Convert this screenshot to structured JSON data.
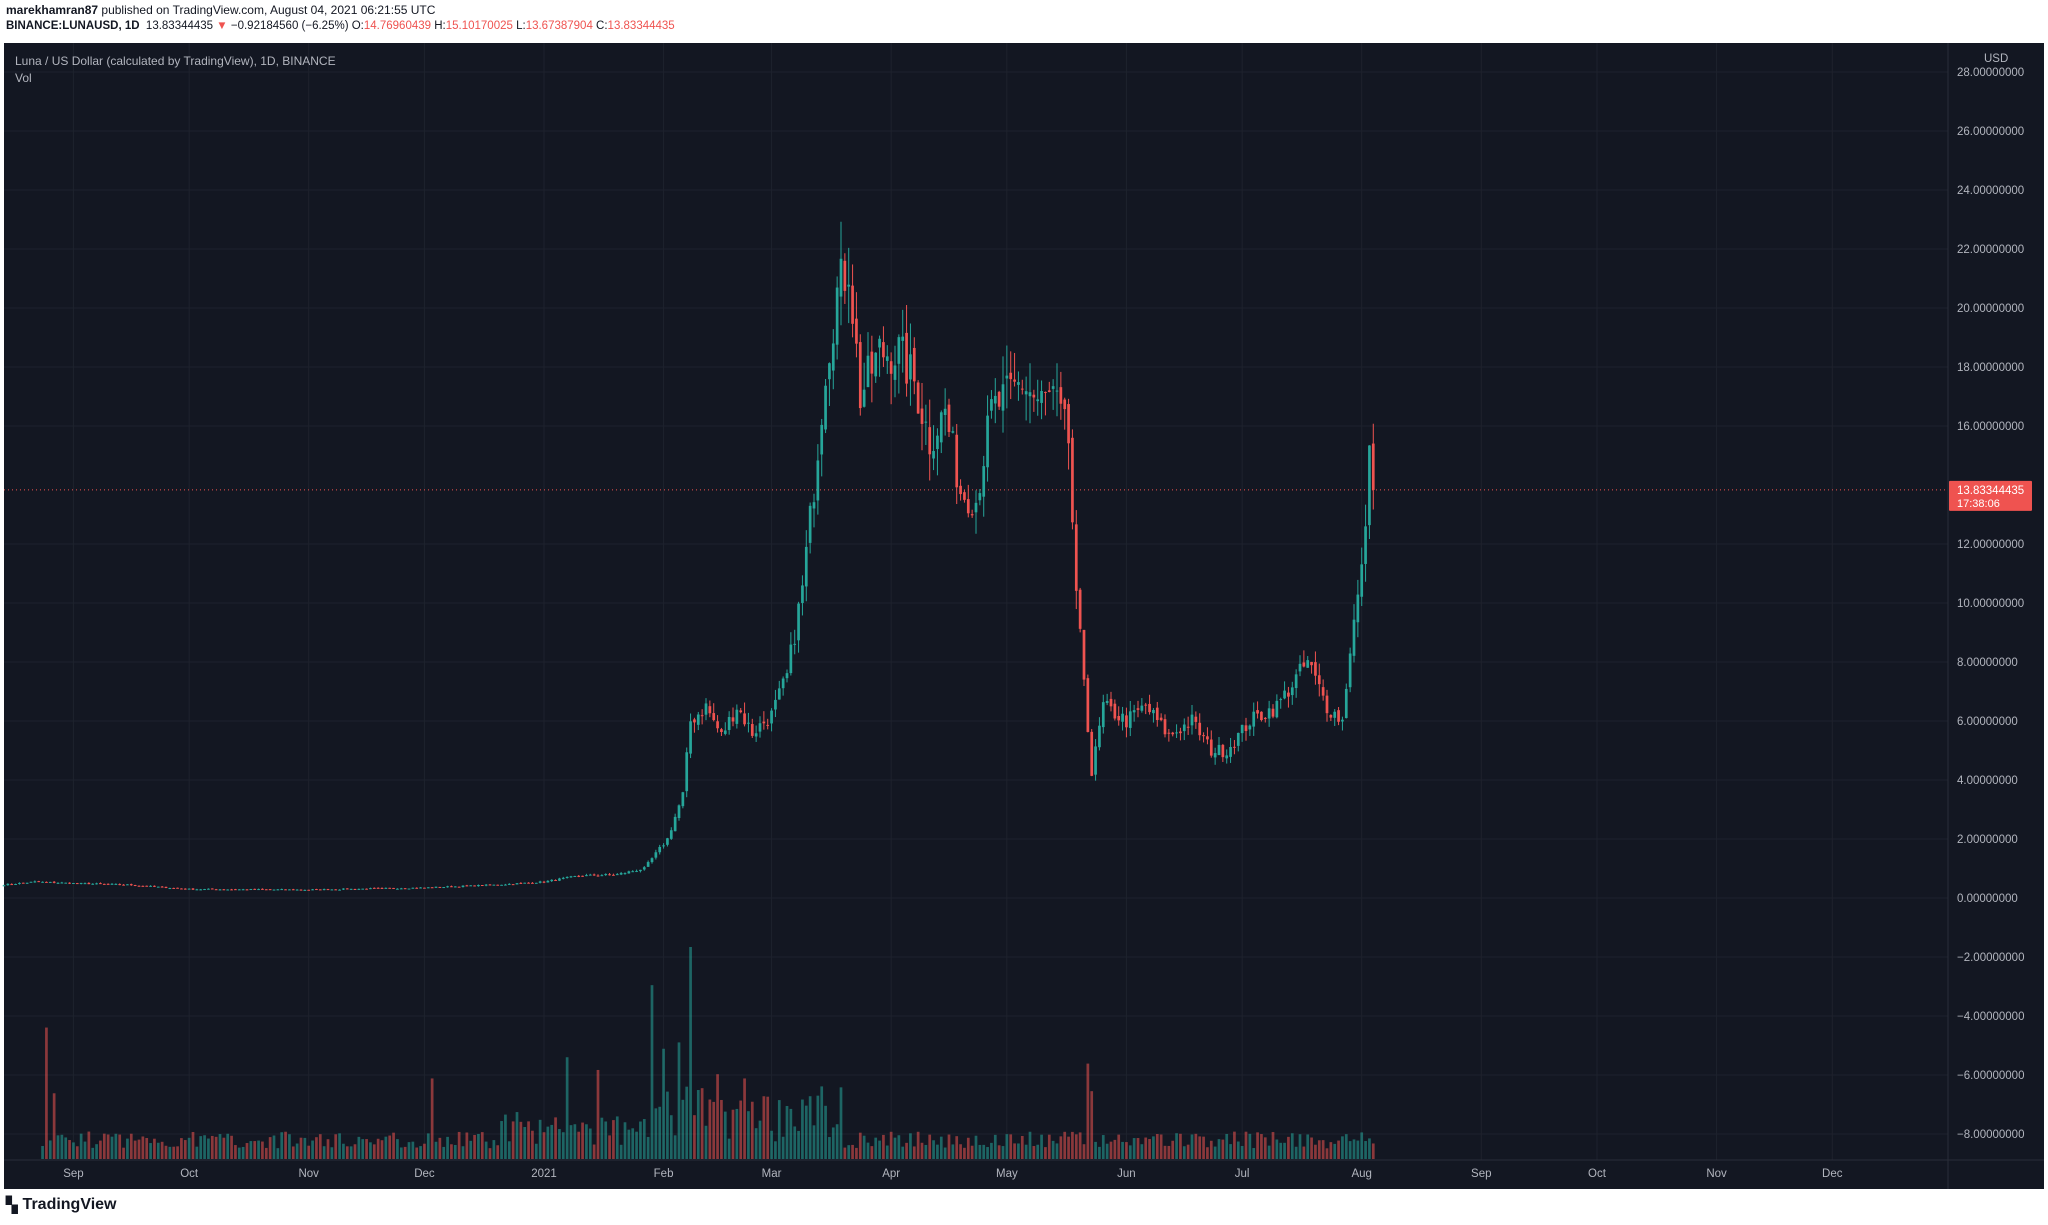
{
  "header": {
    "publisher": "marekhamran87",
    "published_text": "published on TradingView.com, August 04, 2021 06:21:55 UTC",
    "symbol": "BINANCE:LUNAUSD, 1D",
    "last": "13.83344435",
    "change_arrow": "▼",
    "change": "−0.92184560 (−6.25%)",
    "o_label": "O:",
    "o_value": "14.76960439",
    "h_label": "H:",
    "h_value": "15.10170025",
    "l_label": "L:",
    "l_value": "13.67387904",
    "c_label": "C:",
    "c_value": "13.83344435"
  },
  "legend": {
    "title": "Luna / US Dollar (calculated by TradingView), 1D, BINANCE",
    "volume_label": "Vol"
  },
  "price_scale": {
    "currency": "USD",
    "labels": [
      "28.00000000",
      "26.00000000",
      "24.00000000",
      "22.00000000",
      "20.00000000",
      "18.00000000",
      "16.00000000",
      "12.00000000",
      "10.00000000",
      "8.00000000",
      "6.00000000",
      "4.00000000",
      "2.00000000",
      "0.00000000",
      "−2.00000000",
      "−4.00000000",
      "−6.00000000",
      "−8.00000000"
    ],
    "current_price_label": "13.83344435",
    "countdown": "17:38:06"
  },
  "time_scale": {
    "labels": [
      "Sep",
      "Oct",
      "Nov",
      "Dec",
      "2021",
      "Feb",
      "Mar",
      "Apr",
      "May",
      "Jun",
      "Jul",
      "Aug",
      "Sep",
      "Oct",
      "Nov",
      "Dec"
    ]
  },
  "footer": {
    "logo_icon": "tradingview-logo-icon",
    "brand": "TradingView"
  },
  "colors": {
    "up": "#26a69a",
    "down": "#ef5350",
    "background": "#131722",
    "text": "#b2b5be",
    "price_line": "#ef5350"
  },
  "chart_data": {
    "type": "candlestick",
    "title": "Luna / US Dollar (calculated by TradingView), 1D, BINANCE",
    "currency": "USD",
    "y_range": [
      -9,
      28.5
    ],
    "x_range": [
      "2020-08-14",
      "2021-12-31"
    ],
    "last_price": 13.83344435,
    "anchors": [
      [
        "2020-08-14",
        0.45
      ],
      [
        "2020-08-22",
        0.55
      ],
      [
        "2020-09-01",
        0.5
      ],
      [
        "2020-09-15",
        0.45
      ],
      [
        "2020-10-01",
        0.3
      ],
      [
        "2020-11-01",
        0.28
      ],
      [
        "2020-12-01",
        0.35
      ],
      [
        "2020-12-20",
        0.45
      ],
      [
        "2021-01-01",
        0.55
      ],
      [
        "2021-01-10",
        0.75
      ],
      [
        "2021-01-20",
        0.8
      ],
      [
        "2021-01-27",
        1.0
      ],
      [
        "2021-02-02",
        2.0
      ],
      [
        "2021-02-06",
        3.5
      ],
      [
        "2021-02-08",
        6.0
      ],
      [
        "2021-02-12",
        6.5
      ],
      [
        "2021-02-16",
        5.5
      ],
      [
        "2021-02-20",
        6.5
      ],
      [
        "2021-02-24",
        5.6
      ],
      [
        "2021-03-01",
        6.2
      ],
      [
        "2021-03-05",
        7.5
      ],
      [
        "2021-03-09",
        10.5
      ],
      [
        "2021-03-12",
        14.0
      ],
      [
        "2021-03-15",
        18.0
      ],
      [
        "2021-03-18",
        20.5
      ],
      [
        "2021-03-21",
        21.5
      ],
      [
        "2021-03-24",
        17.0
      ],
      [
        "2021-03-29",
        18.5
      ],
      [
        "2021-04-03",
        18.5
      ],
      [
        "2021-04-07",
        17.5
      ],
      [
        "2021-04-11",
        15.5
      ],
      [
        "2021-04-15",
        16.5
      ],
      [
        "2021-04-19",
        13.8
      ],
      [
        "2021-04-23",
        13.5
      ],
      [
        "2021-04-27",
        16.5
      ],
      [
        "2021-05-01",
        17.0
      ],
      [
        "2021-05-05",
        17.5
      ],
      [
        "2021-05-09",
        16.8
      ],
      [
        "2021-05-13",
        17.0
      ],
      [
        "2021-05-17",
        15.5
      ],
      [
        "2021-05-19",
        10.0
      ],
      [
        "2021-05-21",
        7.5
      ],
      [
        "2021-05-23",
        4.2
      ],
      [
        "2021-05-26",
        6.5
      ],
      [
        "2021-06-01",
        6.0
      ],
      [
        "2021-06-06",
        6.5
      ],
      [
        "2021-06-12",
        5.5
      ],
      [
        "2021-06-18",
        6.0
      ],
      [
        "2021-06-23",
        5.0
      ],
      [
        "2021-06-27",
        5.0
      ],
      [
        "2021-07-03",
        6.0
      ],
      [
        "2021-07-10",
        6.5
      ],
      [
        "2021-07-18",
        8.0
      ],
      [
        "2021-07-23",
        6.5
      ],
      [
        "2021-07-27",
        6.0
      ],
      [
        "2021-07-29",
        8.5
      ],
      [
        "2021-08-01",
        11.0
      ],
      [
        "2021-08-03",
        14.8
      ],
      [
        "2021-08-04",
        13.83
      ]
    ],
    "volume_peaks": [
      [
        "2020-08-25",
        0.62
      ],
      [
        "2020-08-27",
        0.31
      ],
      [
        "2020-12-03",
        0.38
      ],
      [
        "2021-01-07",
        0.48
      ],
      [
        "2021-01-15",
        0.42
      ],
      [
        "2021-01-29",
        0.82
      ],
      [
        "2021-02-01",
        0.52
      ],
      [
        "2021-02-08",
        1.0
      ],
      [
        "2021-02-05",
        0.55
      ],
      [
        "2021-02-15",
        0.4
      ],
      [
        "2021-02-22",
        0.38
      ],
      [
        "2021-03-05",
        0.25
      ],
      [
        "2021-03-15",
        0.25
      ],
      [
        "2021-05-22",
        0.45
      ],
      [
        "2021-05-23",
        0.32
      ]
    ]
  }
}
